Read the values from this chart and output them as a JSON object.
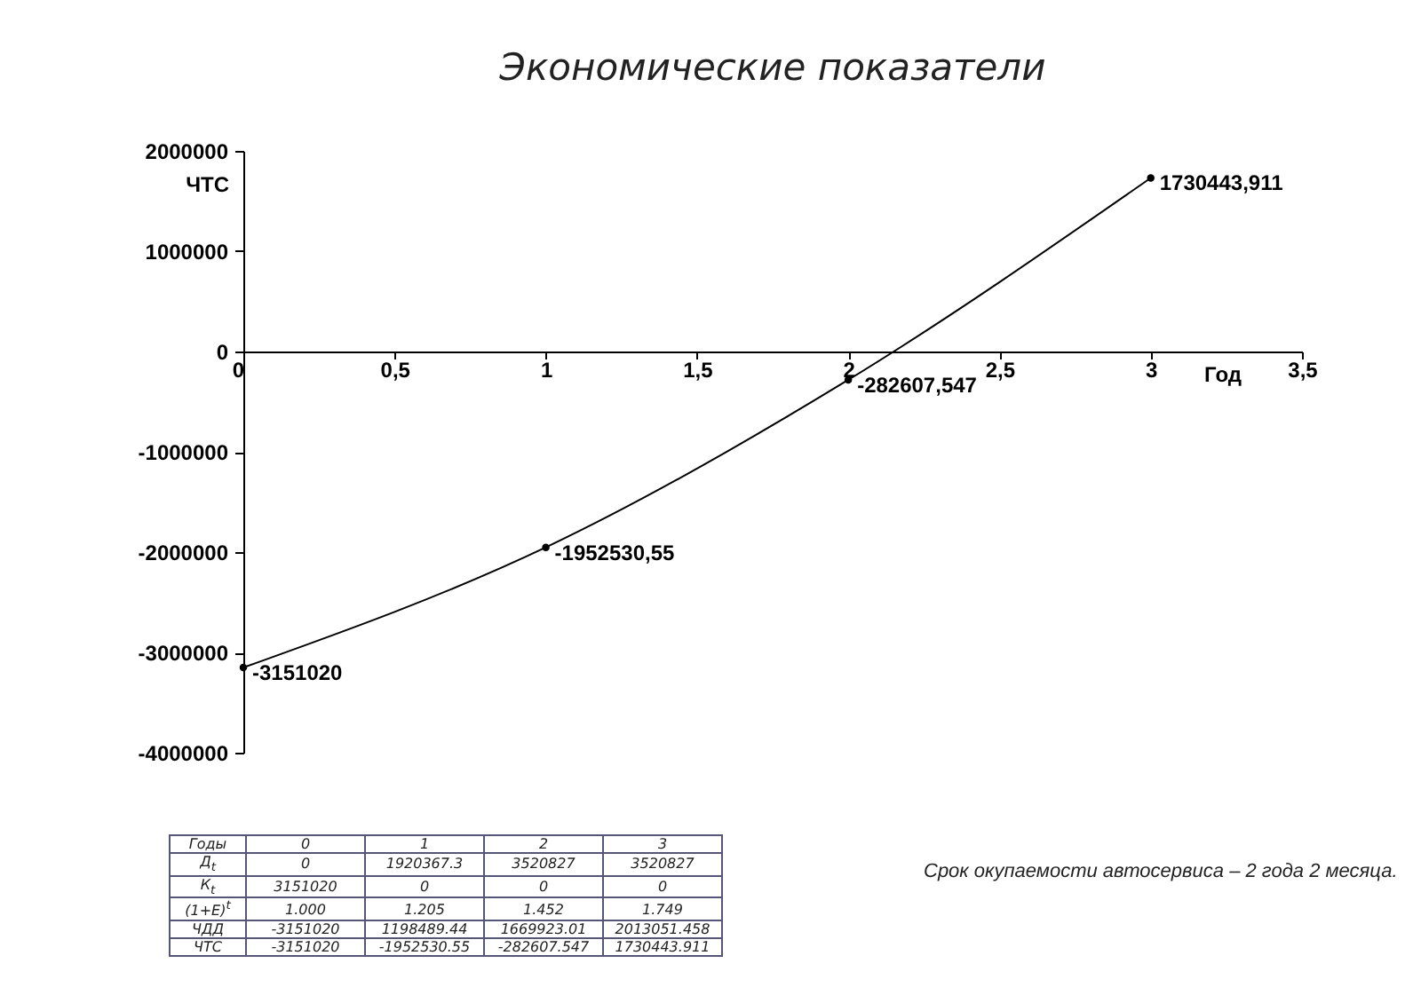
{
  "chart_data": {
    "type": "line",
    "title": "Экономические показатели",
    "xlabel": "Год",
    "ylabel": "ЧТС",
    "x": [
      0,
      1,
      2,
      3
    ],
    "values": [
      -3151020,
      -1952530.55,
      -282607.547,
      1730443.911
    ],
    "value_labels": [
      "-3151020",
      "-1952530,55",
      "-282607,547",
      "1730443,911"
    ],
    "color": "#000000",
    "marker": "circle",
    "line_style": "solid",
    "grid": false,
    "xlim": [
      0,
      3.5
    ],
    "xticks": [
      0,
      {
        "value": 0.5,
        "label": "0,5"
      },
      1,
      {
        "value": 1.5,
        "label": "1,5"
      },
      2,
      {
        "value": 2.5,
        "label": "2,5"
      },
      3,
      {
        "value": 3.5,
        "label": "3,5"
      }
    ],
    "ylim": [
      -4000000,
      2000000
    ],
    "yticks": [
      -4000000,
      -3000000,
      -2000000,
      -1000000,
      0,
      1000000,
      2000000
    ],
    "annotations": [
      "Годы  0  1  2  3",
      "Д$_{t}$  0  1920367.3  3520827  3520827",
      "К$_{t}$  3151020  0  0  0",
      "(1+E)$^{t}$  1.000  1.205  1.452  1.749",
      "ЧДД  -3151020  1198489.44  1669923.01  2013051.458",
      "ЧТС  -3151020  -1952530.55  -282607.547  1730443.911",
      "Срок окупаемости автосервиса – 2 года 2 месяца."
    ]
  }
}
